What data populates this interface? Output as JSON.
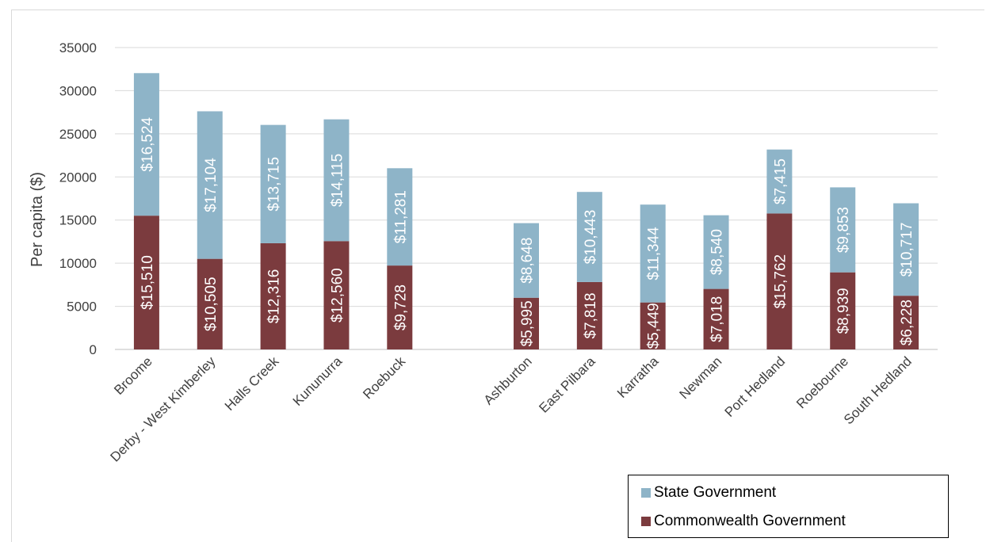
{
  "chart_data": {
    "type": "bar",
    "stacked": true,
    "categories": [
      "Broome",
      "Derby - West Kimberley",
      "Halls Creek",
      "Kununurra",
      "Roebuck",
      "",
      "Ashburton",
      "East Pilbara",
      "Karratha",
      "Newman",
      "Port Hedland",
      "Roebourne",
      "South Hedland"
    ],
    "series": [
      {
        "name": "Commonwealth Government",
        "color": "#7b3b3e",
        "values": [
          15510,
          10505,
          12316,
          12560,
          9728,
          null,
          5995,
          7818,
          5449,
          7018,
          15762,
          8939,
          6228
        ],
        "labels": [
          "$15,510",
          "$10,505",
          "$12,316",
          "$12,560",
          "$9,728",
          "",
          "$5,995",
          "$7,818",
          "$5,449",
          "$7,018",
          "$15,762",
          "$8,939",
          "$6,228"
        ]
      },
      {
        "name": "State Government",
        "color": "#8eb4c8",
        "values": [
          16524,
          17104,
          13715,
          14115,
          11281,
          null,
          8648,
          10443,
          11344,
          8540,
          7415,
          9853,
          10717
        ],
        "labels": [
          "$16,524",
          "$17,104",
          "$13,715",
          "$14,115",
          "$11,281",
          "",
          "$8,648",
          "$10,443",
          "$11,344",
          "$8,540",
          "$7,415",
          "$9,853",
          "$10,717"
        ]
      }
    ],
    "title": "",
    "xlabel": "",
    "ylabel": "Per capita ($)",
    "ylim": [
      0,
      35000
    ],
    "yticks": [
      "0",
      "5000",
      "10000",
      "15000",
      "20000",
      "25000",
      "30000",
      "35000"
    ],
    "grid": true,
    "legend_position": "bottom-right",
    "legend_order": [
      "State Government",
      "Commonwealth Government"
    ]
  }
}
